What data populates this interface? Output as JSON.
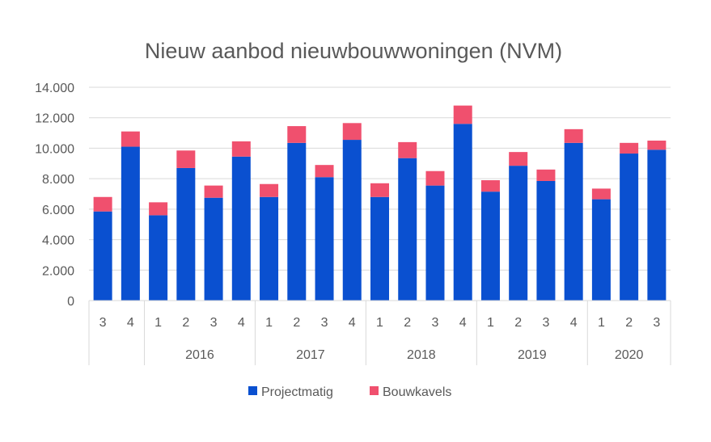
{
  "chart_data": {
    "type": "bar",
    "stacked": true,
    "title": "Nieuw aanbod nieuwbouwwoningen (NVM)",
    "xlabel": "",
    "ylabel": "",
    "ylim": [
      0,
      14000
    ],
    "y_ticks": [
      "0",
      "2.000",
      "4.000",
      "6.000",
      "8.000",
      "10.000",
      "12.000",
      "14.000"
    ],
    "y_tick_values": [
      0,
      2000,
      4000,
      6000,
      8000,
      10000,
      12000,
      14000
    ],
    "grid": true,
    "legend_position": "bottom",
    "quarters": [
      "3",
      "4",
      "1",
      "2",
      "3",
      "4",
      "1",
      "2",
      "3",
      "4",
      "1",
      "2",
      "3",
      "4",
      "1",
      "2",
      "3",
      "4",
      "1",
      "2",
      "3"
    ],
    "year_groups": [
      {
        "label": "",
        "count": 2
      },
      {
        "label": "2016",
        "count": 4
      },
      {
        "label": "2017",
        "count": 4
      },
      {
        "label": "2018",
        "count": 4
      },
      {
        "label": "2019",
        "count": 4
      },
      {
        "label": "2020",
        "count": 3
      }
    ],
    "series": [
      {
        "name": "Projectmatig",
        "color": "#0a50d0",
        "values": [
          5850,
          10100,
          5600,
          8700,
          6750,
          9450,
          6800,
          10350,
          8100,
          10550,
          6800,
          9350,
          7550,
          11600,
          7150,
          8850,
          7850,
          10350,
          6650,
          9650,
          9900
        ]
      },
      {
        "name": "Bouwkavels",
        "color": "#f0506e",
        "values": [
          950,
          1000,
          850,
          1150,
          800,
          1000,
          850,
          1100,
          800,
          1100,
          900,
          1050,
          950,
          1200,
          750,
          900,
          750,
          900,
          700,
          700,
          600
        ]
      }
    ]
  }
}
